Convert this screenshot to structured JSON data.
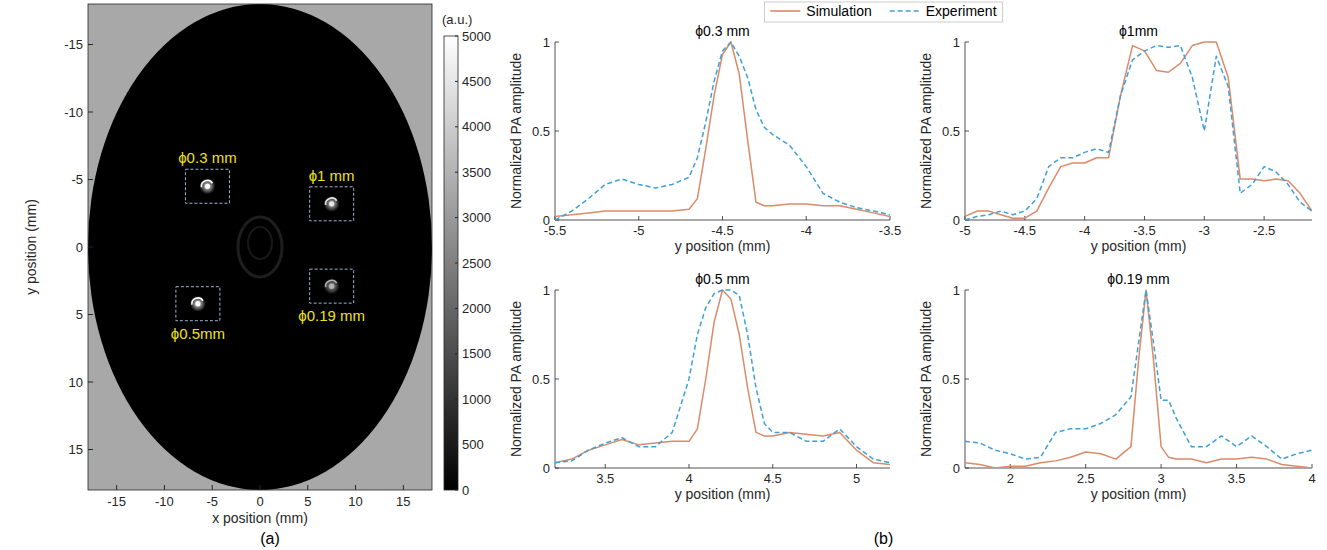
{
  "chart_data": [
    {
      "type": "image",
      "panel_label": "(a)",
      "x_label": "x position (mm)",
      "y_label": "y position (mm)",
      "xlim": [
        -18,
        18
      ],
      "ylim": [
        -18,
        18
      ],
      "xticks": [
        -15,
        -10,
        -5,
        0,
        5,
        10,
        15
      ],
      "yticks": [
        -15,
        -10,
        -5,
        0,
        5,
        10,
        15
      ],
      "colorbar_label": "(a.u.)",
      "colorbar_range": [
        0,
        5000
      ],
      "colorbar_ticks": [
        0,
        500,
        1000,
        1500,
        2000,
        2500,
        3000,
        3500,
        4000,
        4500,
        5000
      ],
      "spots": [
        {
          "label": "ϕ0.3 mm",
          "x": -5.5,
          "y": -4.5,
          "value": 5000
        },
        {
          "label": "ϕ1 mm",
          "x": 7.5,
          "y": -3.2,
          "value": 4500
        },
        {
          "label": "ϕ0.19 mm",
          "x": 7.5,
          "y": 2.9,
          "value": 3500
        },
        {
          "label": "ϕ0.5mm",
          "x": -6.5,
          "y": 4.2,
          "value": 5000
        }
      ]
    },
    {
      "type": "line",
      "title": "ϕ0.3 mm",
      "panel_label": "(b)",
      "x_label": "y position (mm)",
      "y_label": "Normalized PA amplitude",
      "legend": "top",
      "xlim": [
        -5.5,
        -3.5
      ],
      "xticks": [
        -5.5,
        -5,
        -4.5,
        -4,
        -3.5
      ],
      "ylim": [
        0,
        1
      ],
      "yticks": [
        0,
        0.5,
        1
      ],
      "x": [
        -5.5,
        -5.4,
        -5.3,
        -5.2,
        -5.1,
        -5.0,
        -4.9,
        -4.8,
        -4.7,
        -4.65,
        -4.6,
        -4.55,
        -4.5,
        -4.45,
        -4.4,
        -4.35,
        -4.3,
        -4.25,
        -4.2,
        -4.1,
        -4.0,
        -3.9,
        -3.8,
        -3.7,
        -3.6,
        -3.5
      ],
      "series": [
        {
          "name": "Simulation",
          "color": "#d98b6a",
          "line_style": "solid",
          "values": [
            0.02,
            0.03,
            0.04,
            0.05,
            0.05,
            0.05,
            0.05,
            0.05,
            0.06,
            0.12,
            0.4,
            0.7,
            0.93,
            1.0,
            0.82,
            0.45,
            0.1,
            0.08,
            0.08,
            0.09,
            0.09,
            0.08,
            0.08,
            0.06,
            0.04,
            0.02
          ]
        },
        {
          "name": "Experiment",
          "color": "#3fa0d6",
          "line_style": "dashed",
          "values": [
            0.0,
            0.05,
            0.12,
            0.2,
            0.23,
            0.2,
            0.18,
            0.2,
            0.24,
            0.35,
            0.55,
            0.78,
            0.95,
            1.0,
            0.92,
            0.8,
            0.62,
            0.52,
            0.48,
            0.42,
            0.3,
            0.15,
            0.1,
            0.07,
            0.05,
            0.03
          ]
        }
      ]
    },
    {
      "type": "line",
      "title": "ϕ1mm",
      "x_label": "y position (mm)",
      "y_label": "Normalized PA amplitude",
      "xlim": [
        -5,
        -2.1
      ],
      "xticks": [
        -5,
        -4.5,
        -4,
        -3.5,
        -3,
        -2.5
      ],
      "ylim": [
        0,
        1
      ],
      "yticks": [
        0,
        0.5,
        1
      ],
      "x": [
        -5.0,
        -4.9,
        -4.8,
        -4.7,
        -4.6,
        -4.5,
        -4.4,
        -4.3,
        -4.2,
        -4.1,
        -4.0,
        -3.9,
        -3.8,
        -3.7,
        -3.6,
        -3.5,
        -3.4,
        -3.3,
        -3.2,
        -3.1,
        -3.0,
        -2.9,
        -2.8,
        -2.7,
        -2.6,
        -2.5,
        -2.4,
        -2.3,
        -2.2,
        -2.1
      ],
      "series": [
        {
          "color": "#d98b6a",
          "line_style": "solid",
          "values": [
            0.02,
            0.05,
            0.05,
            0.03,
            0.01,
            0.01,
            0.05,
            0.18,
            0.3,
            0.32,
            0.32,
            0.35,
            0.35,
            0.7,
            0.98,
            0.95,
            0.84,
            0.83,
            0.88,
            0.98,
            1.0,
            1.0,
            0.8,
            0.23,
            0.23,
            0.22,
            0.23,
            0.22,
            0.15,
            0.05
          ]
        },
        {
          "color": "#3fa0d6",
          "line_style": "dashed",
          "values": [
            0.0,
            0.02,
            0.03,
            0.05,
            0.03,
            0.05,
            0.12,
            0.3,
            0.35,
            0.35,
            0.38,
            0.4,
            0.38,
            0.7,
            0.9,
            0.95,
            0.98,
            0.97,
            0.98,
            0.8,
            0.5,
            0.92,
            0.75,
            0.15,
            0.2,
            0.3,
            0.27,
            0.2,
            0.1,
            0.05
          ]
        }
      ]
    },
    {
      "type": "line",
      "title": "ϕ0.5 mm",
      "x_label": "y position (mm)",
      "y_label": "Normalized PA amplitude",
      "xlim": [
        3.2,
        5.2
      ],
      "xticks": [
        3.5,
        4,
        4.5,
        5
      ],
      "ylim": [
        0,
        1
      ],
      "yticks": [
        0,
        0.5,
        1
      ],
      "x": [
        3.2,
        3.3,
        3.4,
        3.5,
        3.6,
        3.7,
        3.8,
        3.9,
        4.0,
        4.05,
        4.1,
        4.15,
        4.2,
        4.25,
        4.3,
        4.35,
        4.4,
        4.45,
        4.5,
        4.6,
        4.7,
        4.8,
        4.9,
        5.0,
        5.1,
        5.2
      ],
      "series": [
        {
          "color": "#d98b6a",
          "line_style": "solid",
          "values": [
            0.03,
            0.05,
            0.1,
            0.13,
            0.16,
            0.13,
            0.14,
            0.15,
            0.15,
            0.22,
            0.5,
            0.82,
            1.0,
            0.95,
            0.75,
            0.45,
            0.2,
            0.18,
            0.18,
            0.2,
            0.19,
            0.18,
            0.2,
            0.1,
            0.03,
            0.02
          ]
        },
        {
          "color": "#3fa0d6",
          "line_style": "dashed",
          "values": [
            0.03,
            0.04,
            0.1,
            0.14,
            0.17,
            0.12,
            0.12,
            0.2,
            0.5,
            0.75,
            0.9,
            0.98,
            1.0,
            1.0,
            0.97,
            0.75,
            0.45,
            0.25,
            0.2,
            0.2,
            0.15,
            0.15,
            0.22,
            0.12,
            0.05,
            0.03
          ]
        }
      ]
    },
    {
      "type": "line",
      "title": "ϕ0.19 mm",
      "x_label": "y position (mm)",
      "y_label": "Normalized PA amplitude",
      "xlim": [
        1.7,
        4
      ],
      "xticks": [
        2,
        2.5,
        3,
        3.5,
        4
      ],
      "ylim": [
        0,
        1
      ],
      "yticks": [
        0,
        0.5,
        1
      ],
      "x": [
        1.7,
        1.8,
        1.9,
        2.0,
        2.1,
        2.2,
        2.3,
        2.4,
        2.5,
        2.6,
        2.7,
        2.8,
        2.85,
        2.9,
        2.95,
        3.0,
        3.05,
        3.1,
        3.2,
        3.3,
        3.4,
        3.5,
        3.6,
        3.7,
        3.8,
        3.9,
        4.0
      ],
      "series": [
        {
          "color": "#d98b6a",
          "line_style": "solid",
          "values": [
            0.03,
            0.02,
            0.0,
            0.01,
            0.01,
            0.03,
            0.04,
            0.06,
            0.09,
            0.08,
            0.05,
            0.12,
            0.6,
            1.0,
            0.6,
            0.12,
            0.06,
            0.05,
            0.05,
            0.03,
            0.05,
            0.05,
            0.06,
            0.05,
            0.02,
            0.01,
            0.0
          ]
        },
        {
          "color": "#3fa0d6",
          "line_style": "dashed",
          "values": [
            0.15,
            0.14,
            0.1,
            0.08,
            0.05,
            0.06,
            0.2,
            0.22,
            0.22,
            0.25,
            0.3,
            0.4,
            0.7,
            1.0,
            0.7,
            0.38,
            0.38,
            0.28,
            0.12,
            0.12,
            0.18,
            0.12,
            0.18,
            0.12,
            0.05,
            0.08,
            0.1
          ]
        }
      ]
    }
  ]
}
